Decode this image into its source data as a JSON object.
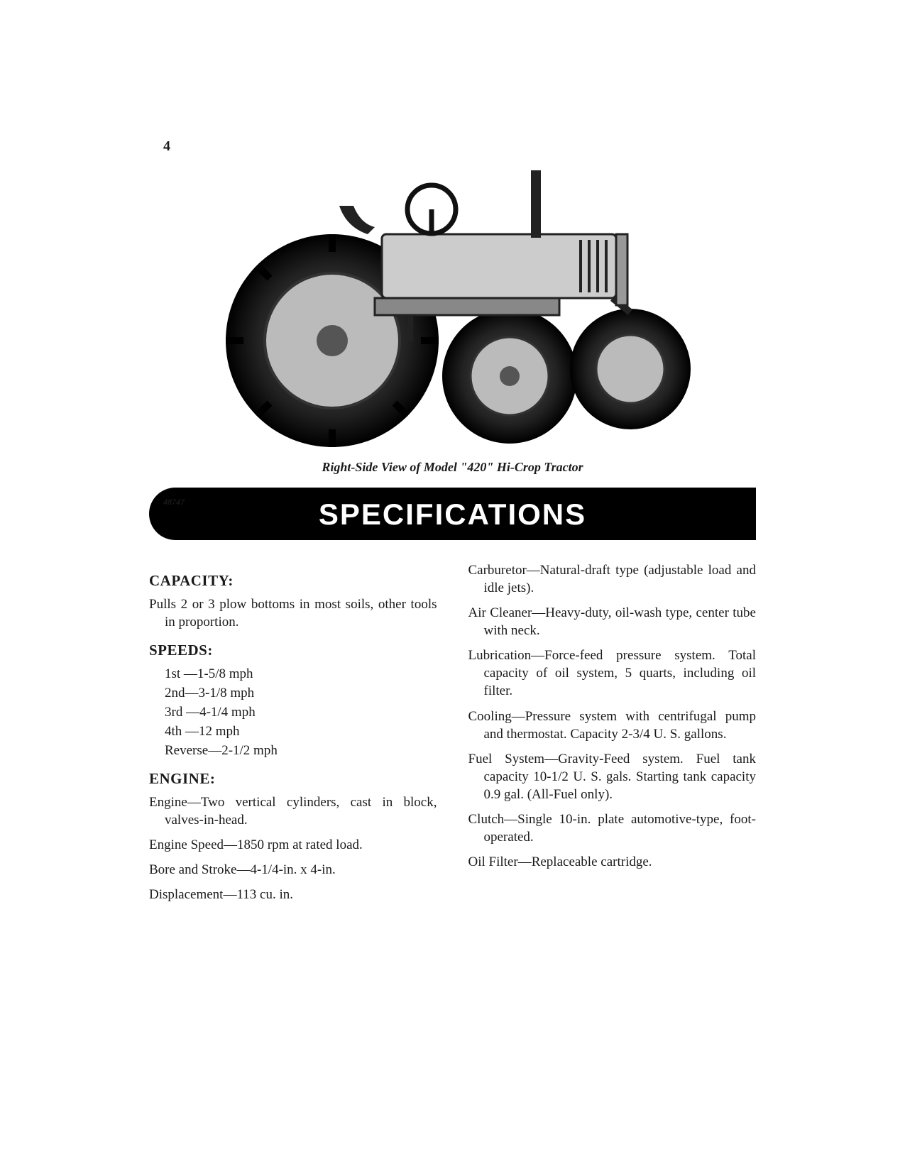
{
  "page_number": "4",
  "figure_id": "48747",
  "caption": "Right-Side View of Model \"420\" Hi-Crop Tractor",
  "banner": "SPECIFICATIONS",
  "colors": {
    "text": "#1a1a1a",
    "banner_bg": "#000000",
    "banner_fg": "#ffffff",
    "page_bg": "#ffffff"
  },
  "typography": {
    "body_fontsize": 19,
    "heading_fontsize": 21,
    "banner_fontsize": 42,
    "caption_fontsize": 18
  },
  "left_column": {
    "capacity": {
      "heading": "CAPACITY:",
      "text": "Pulls 2 or 3 plow bottoms in most soils, other tools in proportion."
    },
    "speeds": {
      "heading": "SPEEDS:",
      "items": [
        "1st —1-5/8 mph",
        "2nd—3-1/8 mph",
        "3rd —4-1/4 mph",
        "4th —12 mph",
        "Reverse—2-1/2 mph"
      ]
    },
    "engine": {
      "heading": "ENGINE:",
      "items": [
        "Engine—Two vertical cylinders, cast in block, valves-in-head.",
        "Engine Speed—1850 rpm at rated load.",
        "Bore and Stroke—4-1/4-in. x 4-in.",
        "Displacement—113 cu. in."
      ]
    }
  },
  "right_column": {
    "items": [
      "Carburetor—Natural-draft type (adjustable load and idle jets).",
      "Air Cleaner—Heavy-duty, oil-wash type, center tube with neck.",
      "Lubrication—Force-feed pressure system. Total capacity of oil system, 5 quarts, including oil filter.",
      "Cooling—Pressure system with centrifugal pump and thermostat. Capacity 2-3/4 U. S. gallons.",
      "Fuel System—Gravity-Feed system. Fuel tank capacity 10-1/2 U. S. gals. Starting tank capacity 0.9 gal. (All-Fuel only).",
      "Clutch—Single 10-in. plate automotive-type, foot-operated.",
      "Oil Filter—Replaceable cartridge."
    ]
  }
}
